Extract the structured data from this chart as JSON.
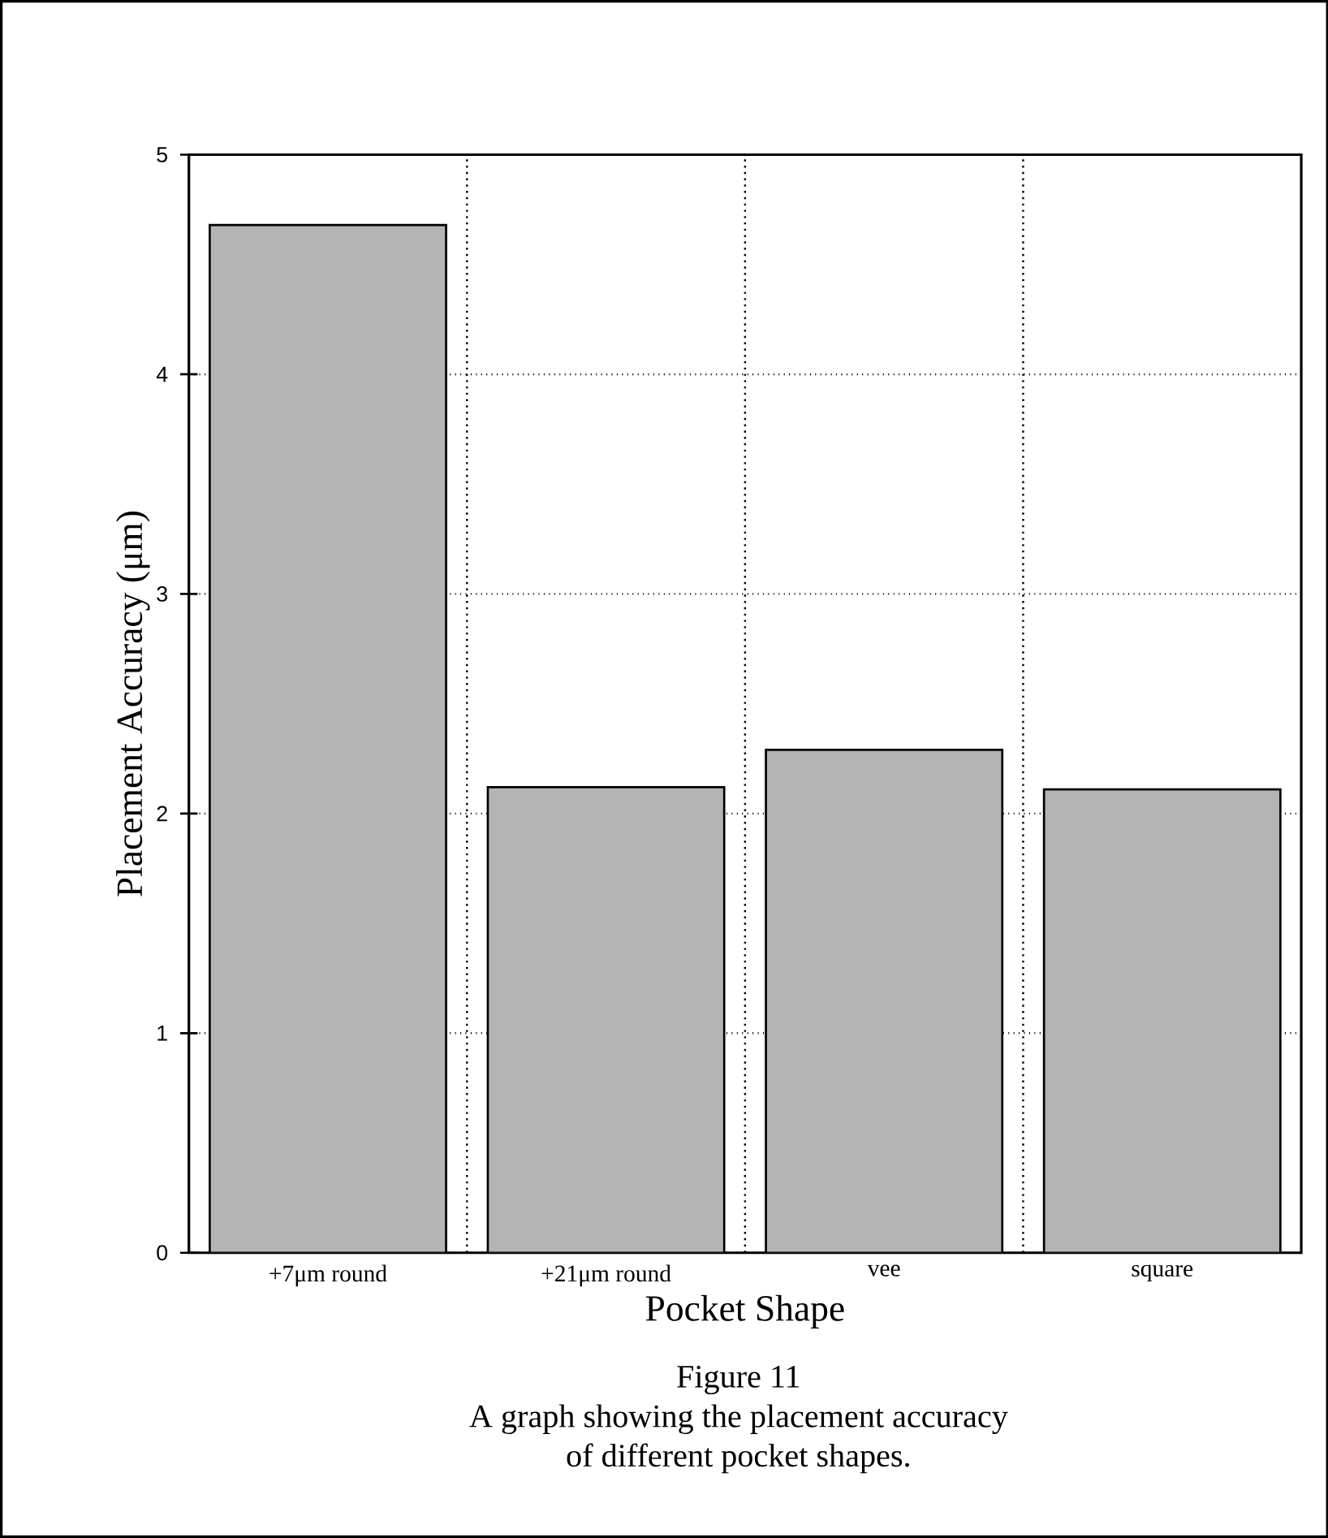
{
  "chart_data": {
    "type": "bar",
    "xlabel": "Pocket Shape",
    "ylabel": "Placement Accuracy  (μm)",
    "categories": [
      "+7μm round",
      "+21μm round",
      "vee",
      "square"
    ],
    "values": [
      4.68,
      2.12,
      2.29,
      2.11
    ],
    "color": "#b4b4b4",
    "ylim": [
      0,
      5
    ],
    "yticks": [
      0,
      1,
      2,
      3,
      4,
      5
    ],
    "grid": true,
    "annotations": [
      "Figure 11",
      "A graph showing the placement accuracy",
      "of different pocket shapes."
    ]
  }
}
